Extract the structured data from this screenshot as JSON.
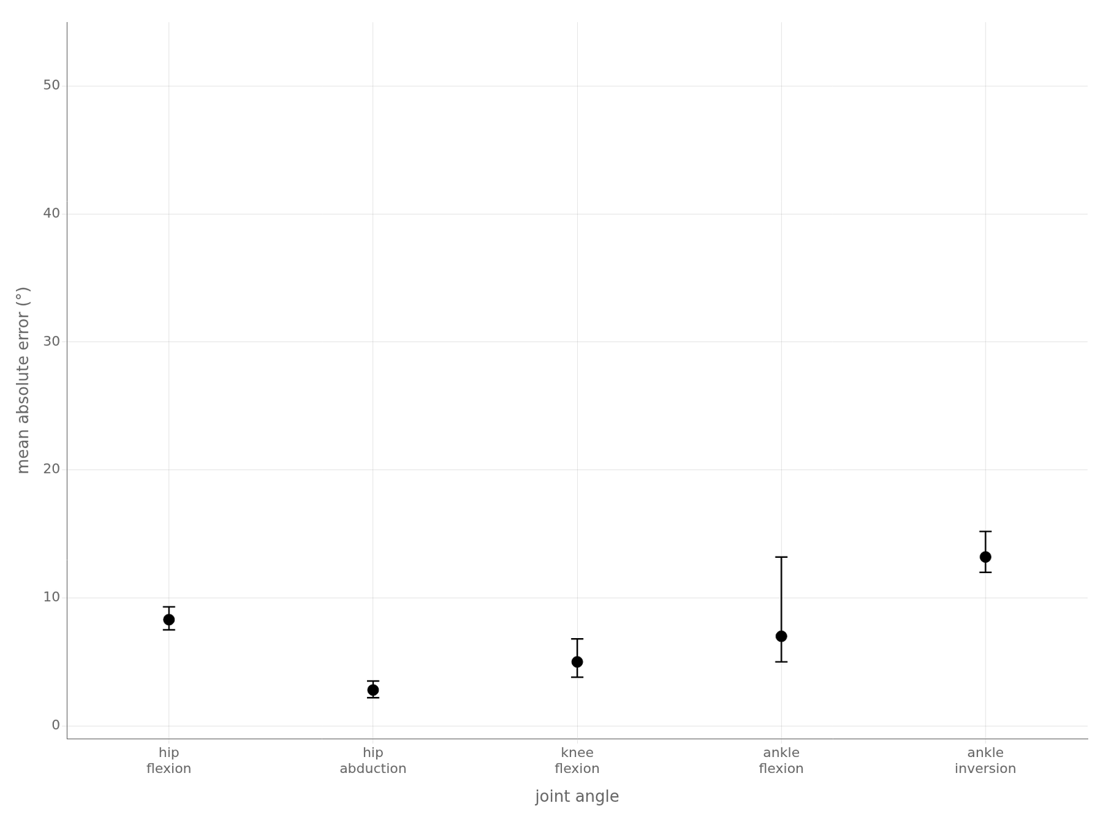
{
  "chart_data": {
    "type": "errorbar",
    "categories": [
      "hip\nflexion",
      "hip\nabduction",
      "knee\nflexion",
      "ankle\nflexion",
      "ankle\ninversion"
    ],
    "values": [
      8.3,
      2.8,
      5.0,
      7.0,
      13.2
    ],
    "ci_lower": [
      7.5,
      2.2,
      3.8,
      5.0,
      12.0
    ],
    "ci_upper": [
      9.3,
      3.5,
      6.8,
      13.2,
      15.2
    ],
    "xlabel": "joint angle",
    "ylabel": "mean absolute error (°)",
    "ylim": [
      -1,
      55
    ],
    "yticks": [
      0,
      10,
      20,
      30,
      40,
      50
    ],
    "grid": true,
    "color": "#000000"
  }
}
